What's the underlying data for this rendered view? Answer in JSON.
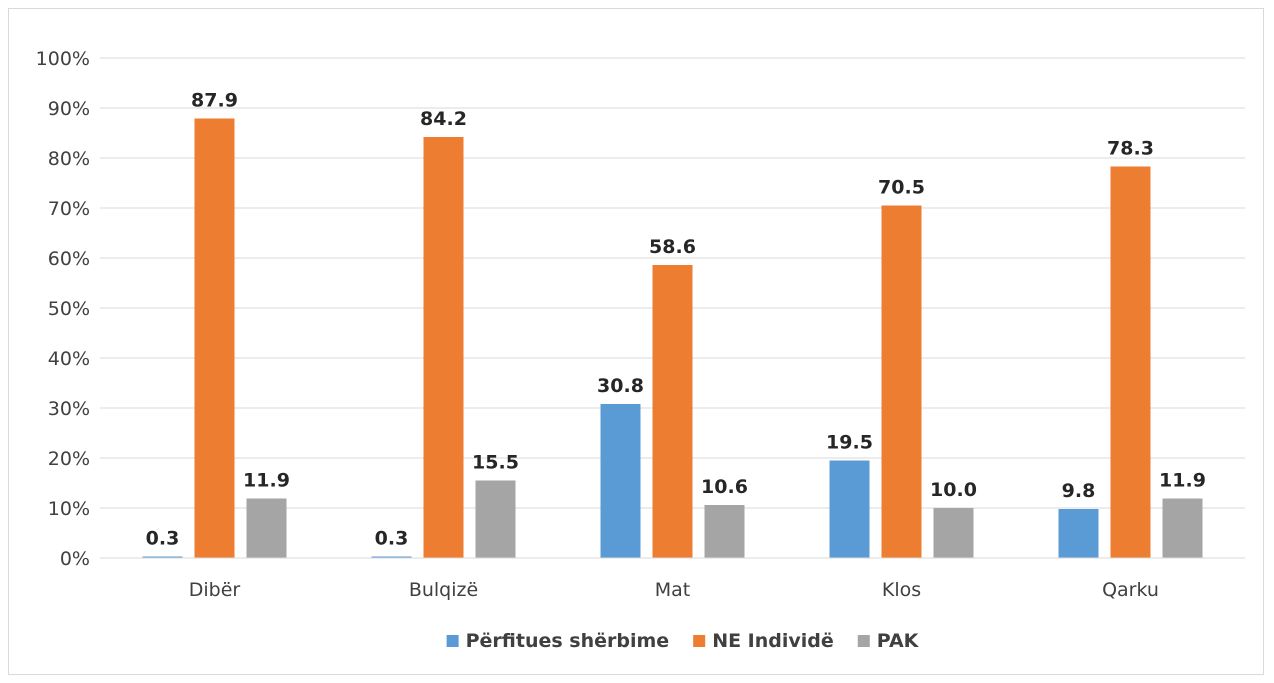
{
  "chart_data": {
    "type": "bar",
    "categories": [
      "Dibër",
      "Bulqizë",
      "Mat",
      "Klos",
      "Qarku"
    ],
    "series": [
      {
        "name": "Përfitues shërbime",
        "color": "#5b9bd5",
        "values": [
          0.3,
          0.3,
          30.8,
          19.5,
          9.8
        ]
      },
      {
        "name": "NE Individë",
        "color": "#ed7d31",
        "values": [
          87.9,
          84.2,
          58.6,
          70.5,
          78.3
        ]
      },
      {
        "name": "PAK",
        "color": "#a5a5a5",
        "values": [
          11.9,
          15.5,
          10.6,
          10.0,
          11.9
        ]
      }
    ],
    "ylim": [
      0,
      100
    ],
    "yticks": [
      "0%",
      "10%",
      "20%",
      "30%",
      "40%",
      "50%",
      "60%",
      "70%",
      "80%",
      "90%",
      "100%"
    ],
    "title": "",
    "xlabel": "",
    "ylabel": "",
    "grid": true,
    "legend_position": "bottom",
    "data_labels": [
      [
        "0.3",
        "0.3",
        "30.8",
        "19.5",
        "9.8"
      ],
      [
        "87.9",
        "84.2",
        "58.6",
        "70.5",
        "78.3"
      ],
      [
        "11.9",
        "15.5",
        "10.6",
        "10.0",
        "11.9"
      ]
    ]
  }
}
